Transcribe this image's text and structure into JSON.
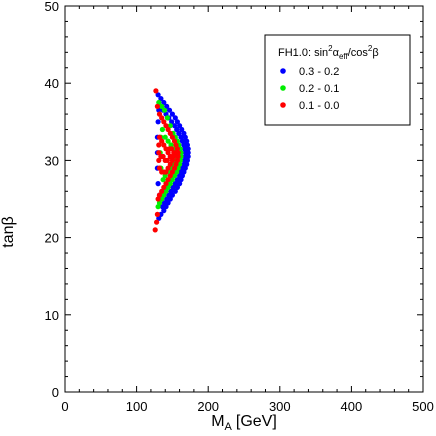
{
  "chart_data": {
    "type": "scatter",
    "xlabel": "M",
    "xlabel_sub": "A",
    "xlabel_unit": "[GeV]",
    "ylabel": "tanβ",
    "xlim": [
      0,
      500
    ],
    "ylim": [
      0,
      50
    ],
    "xticks": [
      0,
      100,
      200,
      300,
      400,
      500
    ],
    "yticks": [
      0,
      10,
      20,
      30,
      40,
      50
    ],
    "grid": false,
    "legend_position": "top-right",
    "legend_title": "FH1.0: sin²α_eff/cos²β",
    "series": [
      {
        "name": "0.3 - 0.2",
        "color": "#0000ff",
        "points": [
          [
            130,
            38.5
          ],
          [
            134,
            38
          ],
          [
            138,
            37.5
          ],
          [
            142,
            37
          ],
          [
            146,
            36.5
          ],
          [
            150,
            36
          ],
          [
            154,
            35.5
          ],
          [
            157,
            35
          ],
          [
            160,
            34.5
          ],
          [
            163,
            34
          ],
          [
            166,
            33.5
          ],
          [
            168,
            33
          ],
          [
            170,
            32.5
          ],
          [
            171,
            32
          ],
          [
            172,
            31.5
          ],
          [
            172,
            31
          ],
          [
            172,
            30.5
          ],
          [
            171,
            30
          ],
          [
            170,
            29.5
          ],
          [
            168,
            29
          ],
          [
            166,
            28.5
          ],
          [
            164,
            28
          ],
          [
            162,
            27.5
          ],
          [
            160,
            27
          ],
          [
            157,
            26.5
          ],
          [
            154,
            26
          ],
          [
            150,
            25.5
          ],
          [
            147,
            25
          ],
          [
            144,
            24.5
          ],
          [
            141,
            24
          ],
          [
            138,
            23.5
          ],
          [
            134,
            23
          ],
          [
            131,
            22.5
          ],
          [
            133,
            37
          ],
          [
            137,
            36.5
          ],
          [
            141,
            36
          ],
          [
            145,
            35.5
          ],
          [
            149,
            35
          ],
          [
            153,
            34.5
          ],
          [
            156,
            34
          ],
          [
            159,
            33.5
          ],
          [
            162,
            33
          ],
          [
            164,
            32.5
          ],
          [
            166,
            32
          ],
          [
            167,
            31.5
          ],
          [
            168,
            31
          ],
          [
            168,
            30.5
          ],
          [
            167,
            30
          ],
          [
            166,
            29.5
          ],
          [
            164,
            29
          ],
          [
            162,
            28.5
          ],
          [
            160,
            28
          ],
          [
            157,
            27.5
          ],
          [
            154,
            27
          ],
          [
            151,
            26.5
          ],
          [
            148,
            26
          ],
          [
            145,
            25.5
          ],
          [
            142,
            25
          ],
          [
            139,
            24.5
          ],
          [
            136,
            24
          ],
          [
            132,
            25.5
          ],
          [
            130,
            27
          ],
          [
            129,
            29
          ],
          [
            129,
            31
          ],
          [
            129,
            33
          ],
          [
            130,
            35
          ],
          [
            131,
            36.5
          ]
        ]
      },
      {
        "name": "0.2 - 0.1",
        "color": "#00ee00",
        "points": [
          [
            131,
            37.5
          ],
          [
            135,
            37
          ],
          [
            139,
            36.5
          ],
          [
            143,
            35.5
          ],
          [
            147,
            34.5
          ],
          [
            151,
            33.5
          ],
          [
            154,
            33
          ],
          [
            157,
            32.5
          ],
          [
            159,
            32
          ],
          [
            161,
            31.5
          ],
          [
            162,
            31
          ],
          [
            162,
            30.5
          ],
          [
            161,
            30
          ],
          [
            160,
            29.5
          ],
          [
            158,
            29
          ],
          [
            156,
            28.5
          ],
          [
            153,
            28
          ],
          [
            150,
            27.5
          ],
          [
            147,
            27
          ],
          [
            144,
            26.5
          ],
          [
            141,
            26
          ],
          [
            138,
            25.5
          ],
          [
            135,
            25
          ],
          [
            132,
            24.5
          ],
          [
            130,
            24
          ],
          [
            136,
            34
          ],
          [
            140,
            33
          ],
          [
            144,
            32.5
          ],
          [
            148,
            32
          ],
          [
            152,
            31.5
          ],
          [
            156,
            31
          ],
          [
            158,
            30.5
          ],
          [
            156,
            30
          ],
          [
            152,
            29.5
          ],
          [
            148,
            29
          ],
          [
            144,
            28.5
          ],
          [
            140,
            28
          ],
          [
            137,
            27.5
          ],
          [
            134,
            29
          ],
          [
            133,
            31
          ],
          [
            134,
            33
          ]
        ]
      },
      {
        "name": "0.1 - 0.0",
        "color": "#ff0000",
        "points": [
          [
            127,
            39
          ],
          [
            126,
            21
          ],
          [
            128,
            22
          ],
          [
            129,
            37
          ],
          [
            132,
            36
          ],
          [
            135,
            35.5
          ],
          [
            138,
            35
          ],
          [
            141,
            34.5
          ],
          [
            144,
            34
          ],
          [
            147,
            33.5
          ],
          [
            150,
            33
          ],
          [
            153,
            32.5
          ],
          [
            155,
            32
          ],
          [
            157,
            31.5
          ],
          [
            158,
            31
          ],
          [
            158,
            30.5
          ],
          [
            157,
            30
          ],
          [
            155,
            29.5
          ],
          [
            153,
            29
          ],
          [
            150,
            28.5
          ],
          [
            147,
            28
          ],
          [
            144,
            27.5
          ],
          [
            141,
            27
          ],
          [
            138,
            26.5
          ],
          [
            135,
            26
          ],
          [
            132,
            25.5
          ],
          [
            130,
            25
          ],
          [
            129,
            23
          ],
          [
            132,
            33
          ],
          [
            135,
            32.5
          ],
          [
            138,
            32
          ],
          [
            141,
            31.5
          ],
          [
            144,
            31
          ],
          [
            147,
            30.5
          ],
          [
            150,
            30.5
          ],
          [
            152,
            30.5
          ],
          [
            150,
            30
          ],
          [
            147,
            29.5
          ],
          [
            144,
            29
          ],
          [
            141,
            28.5
          ],
          [
            138,
            28.5
          ],
          [
            135,
            28.5
          ],
          [
            132,
            29
          ],
          [
            131,
            30
          ],
          [
            131,
            31
          ],
          [
            131,
            32
          ],
          [
            134,
            30.5
          ],
          [
            137,
            30.5
          ],
          [
            140,
            30
          ],
          [
            143,
            30
          ],
          [
            146,
            31.5
          ],
          [
            149,
            31.5
          ],
          [
            152,
            31
          ],
          [
            154,
            31
          ]
        ]
      }
    ]
  }
}
